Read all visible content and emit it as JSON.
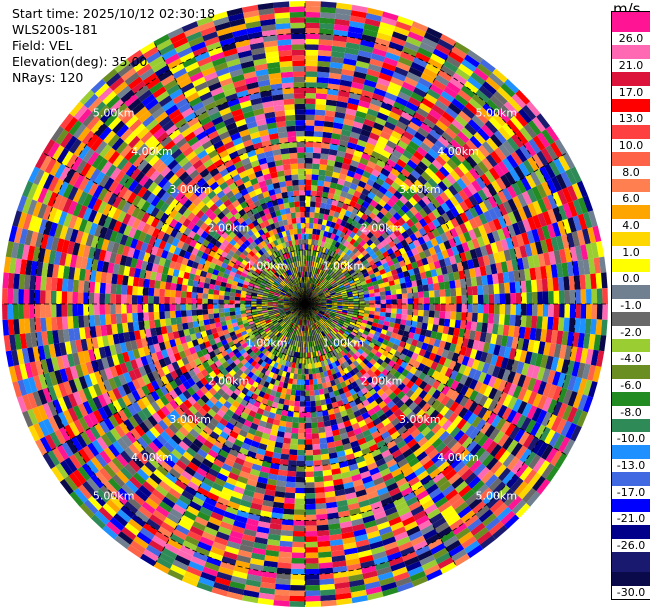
{
  "header": {
    "start_time": "Start time: 2025/10/12 02:30:18",
    "instrument": "WLS200s-181",
    "field": "Field: VEL",
    "elevation": "Elevation(deg): 35.00",
    "nrays": "NRays: 120"
  },
  "chart_data": {
    "type": "heatmap",
    "projection": "polar-ppi",
    "field": "VEL",
    "units": "m/s",
    "n_rays": 120,
    "elevation_deg": 35.0,
    "max_range_km": 5.6,
    "range_rings_km": [
      1.0,
      2.0,
      3.0,
      4.0,
      5.0
    ],
    "range_ring_labels": [
      "1.00km",
      "2.00km",
      "3.00km",
      "4.00km",
      "5.00km"
    ],
    "azimuth_lines_deg": [
      0,
      30,
      60,
      90,
      120,
      150,
      180,
      210,
      240,
      270,
      300,
      330
    ],
    "colorbar": {
      "unit_label": "m/s",
      "tick_labels": [
        "26.0",
        "21.0",
        "17.0",
        "13.0",
        "10.0",
        "8.0",
        "6.0",
        "4.0",
        "1.0",
        "0.0",
        "-1.0",
        "-2.0",
        "-4.0",
        "-6.0",
        "-8.0",
        "-10.0",
        "-13.0",
        "-17.0",
        "-21.0",
        "-26.0",
        "-30.0"
      ],
      "colors": [
        "#ff1493",
        "#ff69b4",
        "#dc143c",
        "#ff0000",
        "#ff4040",
        "#ff6347",
        "#ff7f50",
        "#ffa500",
        "#ffd700",
        "#ffff00",
        "#708090",
        "#696969",
        "#9acd32",
        "#6b8e23",
        "#228b22",
        "#2e8b57",
        "#1e90ff",
        "#4169e1",
        "#0000ff",
        "#00008b",
        "#191970",
        "#0a0a4a"
      ]
    }
  }
}
